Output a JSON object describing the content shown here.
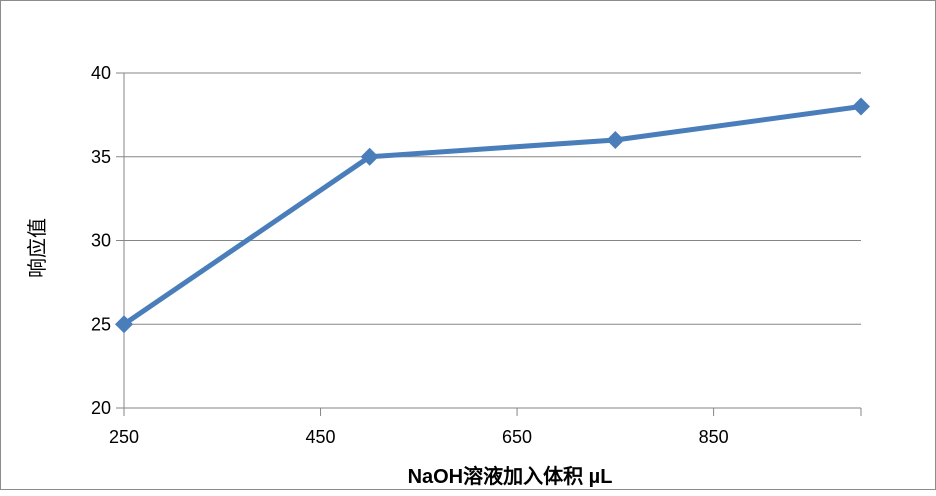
{
  "colors": {
    "series": "#4a7ebb",
    "gridline": "#868686",
    "axis": "#868686",
    "background": "#ffffff"
  },
  "chart_data": {
    "type": "line",
    "title": "",
    "xlabel": "NaOH溶液加入体积 µL",
    "ylabel": "响应值",
    "xlim": [
      250,
      1000
    ],
    "ylim": [
      20,
      40
    ],
    "xticks": [
      250,
      450,
      650,
      850
    ],
    "yticks": [
      20,
      25,
      30,
      35,
      40
    ],
    "grid": {
      "horizontal": true,
      "vertical": false
    },
    "legend": "none",
    "marker": "diamond",
    "series": [
      {
        "x": [
          250,
          500,
          750,
          1000
        ],
        "y": [
          25,
          35,
          36,
          38
        ]
      }
    ]
  }
}
